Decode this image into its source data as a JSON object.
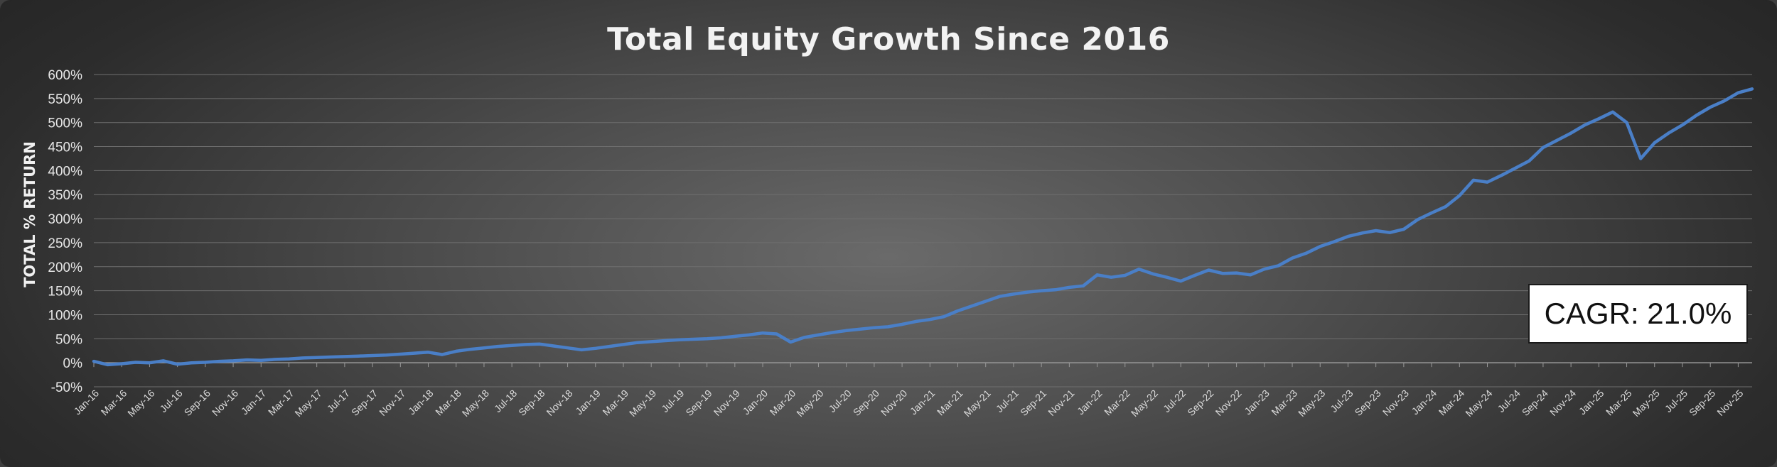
{
  "cagr_label": "CAGR: 21.0%",
  "chart_data": {
    "type": "line",
    "title": "Total Equity Growth Since 2016",
    "xlabel": "",
    "ylabel": "TOTAL % RETURN",
    "ylim": [
      -50,
      600
    ],
    "ytick_labels": [
      "-50%",
      "0%",
      "50%",
      "100%",
      "150%",
      "200%",
      "250%",
      "300%",
      "350%",
      "400%",
      "450%",
      "500%",
      "550%",
      "600%"
    ],
    "yticks": [
      -50,
      0,
      50,
      100,
      150,
      200,
      250,
      300,
      350,
      400,
      450,
      500,
      550,
      600
    ],
    "xlim": [
      "2016-01",
      "2025-12"
    ],
    "xtick_labels": [
      "Jan-16",
      "Mar-16",
      "May-16",
      "Jul-16",
      "Sep-16",
      "Nov-16",
      "Jan-17",
      "Mar-17",
      "May-17",
      "Jul-17",
      "Sep-17",
      "Nov-17",
      "Jan-18",
      "Mar-18",
      "May-18",
      "Jul-18",
      "Sep-18",
      "Nov-18",
      "Jan-19",
      "Mar-19",
      "May-19",
      "Jul-19",
      "Sep-19",
      "Nov-19",
      "Jan-20",
      "Mar-20",
      "May-20",
      "Jul-20",
      "Sep-20",
      "Nov-20",
      "Jan-21",
      "Mar-21",
      "May-21",
      "Jul-21",
      "Sep-21",
      "Nov-21",
      "Jan-22",
      "Mar-22",
      "May-22",
      "Jul-22",
      "Sep-22",
      "Nov-22",
      "Jan-23",
      "Mar-23",
      "May-23",
      "Jul-23",
      "Sep-23",
      "Nov-23",
      "Jan-24",
      "Mar-24",
      "May-24",
      "Jul-24",
      "Sep-24",
      "Nov-24",
      "Jan-25",
      "Mar-25",
      "May-25",
      "Jul-25",
      "Sep-25",
      "Nov-25"
    ],
    "grid": true,
    "legend": "none",
    "series": [
      {
        "color": "#4a7fc7",
        "points": [
          [
            "2016-01",
            3
          ],
          [
            "2016-02",
            -4
          ],
          [
            "2016-03",
            -2
          ],
          [
            "2016-04",
            1
          ],
          [
            "2016-05",
            0
          ],
          [
            "2016-06",
            4
          ],
          [
            "2016-07",
            -3
          ],
          [
            "2016-08",
            0
          ],
          [
            "2016-09",
            1
          ],
          [
            "2016-10",
            3
          ],
          [
            "2016-11",
            4
          ],
          [
            "2016-12",
            6
          ],
          [
            "2017-01",
            5
          ],
          [
            "2017-02",
            7
          ],
          [
            "2017-03",
            8
          ],
          [
            "2017-04",
            10
          ],
          [
            "2017-05",
            11
          ],
          [
            "2017-06",
            12
          ],
          [
            "2017-07",
            13
          ],
          [
            "2017-08",
            14
          ],
          [
            "2017-09",
            15
          ],
          [
            "2017-10",
            16
          ],
          [
            "2017-11",
            18
          ],
          [
            "2017-12",
            20
          ],
          [
            "2018-01",
            22
          ],
          [
            "2018-02",
            17
          ],
          [
            "2018-03",
            24
          ],
          [
            "2018-04",
            28
          ],
          [
            "2018-05",
            31
          ],
          [
            "2018-06",
            34
          ],
          [
            "2018-07",
            36
          ],
          [
            "2018-08",
            38
          ],
          [
            "2018-09",
            39
          ],
          [
            "2018-10",
            35
          ],
          [
            "2018-11",
            31
          ],
          [
            "2018-12",
            27
          ],
          [
            "2019-01",
            30
          ],
          [
            "2019-02",
            34
          ],
          [
            "2019-03",
            38
          ],
          [
            "2019-04",
            42
          ],
          [
            "2019-05",
            44
          ],
          [
            "2019-06",
            46
          ],
          [
            "2019-07",
            48
          ],
          [
            "2019-08",
            49
          ],
          [
            "2019-09",
            50
          ],
          [
            "2019-10",
            52
          ],
          [
            "2019-11",
            55
          ],
          [
            "2019-12",
            58
          ],
          [
            "2020-01",
            62
          ],
          [
            "2020-02",
            60
          ],
          [
            "2020-03",
            43
          ],
          [
            "2020-04",
            53
          ],
          [
            "2020-05",
            58
          ],
          [
            "2020-06",
            63
          ],
          [
            "2020-07",
            67
          ],
          [
            "2020-08",
            70
          ],
          [
            "2020-09",
            73
          ],
          [
            "2020-10",
            75
          ],
          [
            "2020-11",
            80
          ],
          [
            "2020-12",
            86
          ],
          [
            "2021-01",
            90
          ],
          [
            "2021-02",
            96
          ],
          [
            "2021-03",
            108
          ],
          [
            "2021-04",
            118
          ],
          [
            "2021-05",
            128
          ],
          [
            "2021-06",
            138
          ],
          [
            "2021-07",
            143
          ],
          [
            "2021-08",
            147
          ],
          [
            "2021-09",
            150
          ],
          [
            "2021-10",
            152
          ],
          [
            "2021-11",
            157
          ],
          [
            "2021-12",
            160
          ],
          [
            "2022-01",
            183
          ],
          [
            "2022-02",
            178
          ],
          [
            "2022-03",
            182
          ],
          [
            "2022-04",
            195
          ],
          [
            "2022-05",
            185
          ],
          [
            "2022-06",
            178
          ],
          [
            "2022-07",
            170
          ],
          [
            "2022-08",
            182
          ],
          [
            "2022-09",
            193
          ],
          [
            "2022-10",
            186
          ],
          [
            "2022-11",
            187
          ],
          [
            "2022-12",
            183
          ],
          [
            "2023-01",
            195
          ],
          [
            "2023-02",
            202
          ],
          [
            "2023-03",
            218
          ],
          [
            "2023-04",
            228
          ],
          [
            "2023-05",
            242
          ],
          [
            "2023-06",
            252
          ],
          [
            "2023-07",
            263
          ],
          [
            "2023-08",
            270
          ],
          [
            "2023-09",
            275
          ],
          [
            "2023-10",
            271
          ],
          [
            "2023-11",
            278
          ],
          [
            "2023-12",
            298
          ],
          [
            "2024-01",
            312
          ],
          [
            "2024-02",
            325
          ],
          [
            "2024-03",
            348
          ],
          [
            "2024-04",
            380
          ],
          [
            "2024-05",
            376
          ],
          [
            "2024-06",
            390
          ],
          [
            "2024-07",
            405
          ],
          [
            "2024-08",
            420
          ],
          [
            "2024-09",
            448
          ],
          [
            "2024-10",
            463
          ],
          [
            "2024-11",
            478
          ],
          [
            "2024-12",
            495
          ],
          [
            "2025-01",
            508
          ],
          [
            "2025-02",
            522
          ],
          [
            "2025-03",
            500
          ],
          [
            "2025-04",
            425
          ],
          [
            "2025-05",
            458
          ],
          [
            "2025-06",
            478
          ],
          [
            "2025-07",
            495
          ],
          [
            "2025-08",
            515
          ],
          [
            "2025-09",
            532
          ],
          [
            "2025-10",
            545
          ],
          [
            "2025-11",
            562
          ],
          [
            "2025-12",
            570
          ]
        ]
      }
    ]
  }
}
